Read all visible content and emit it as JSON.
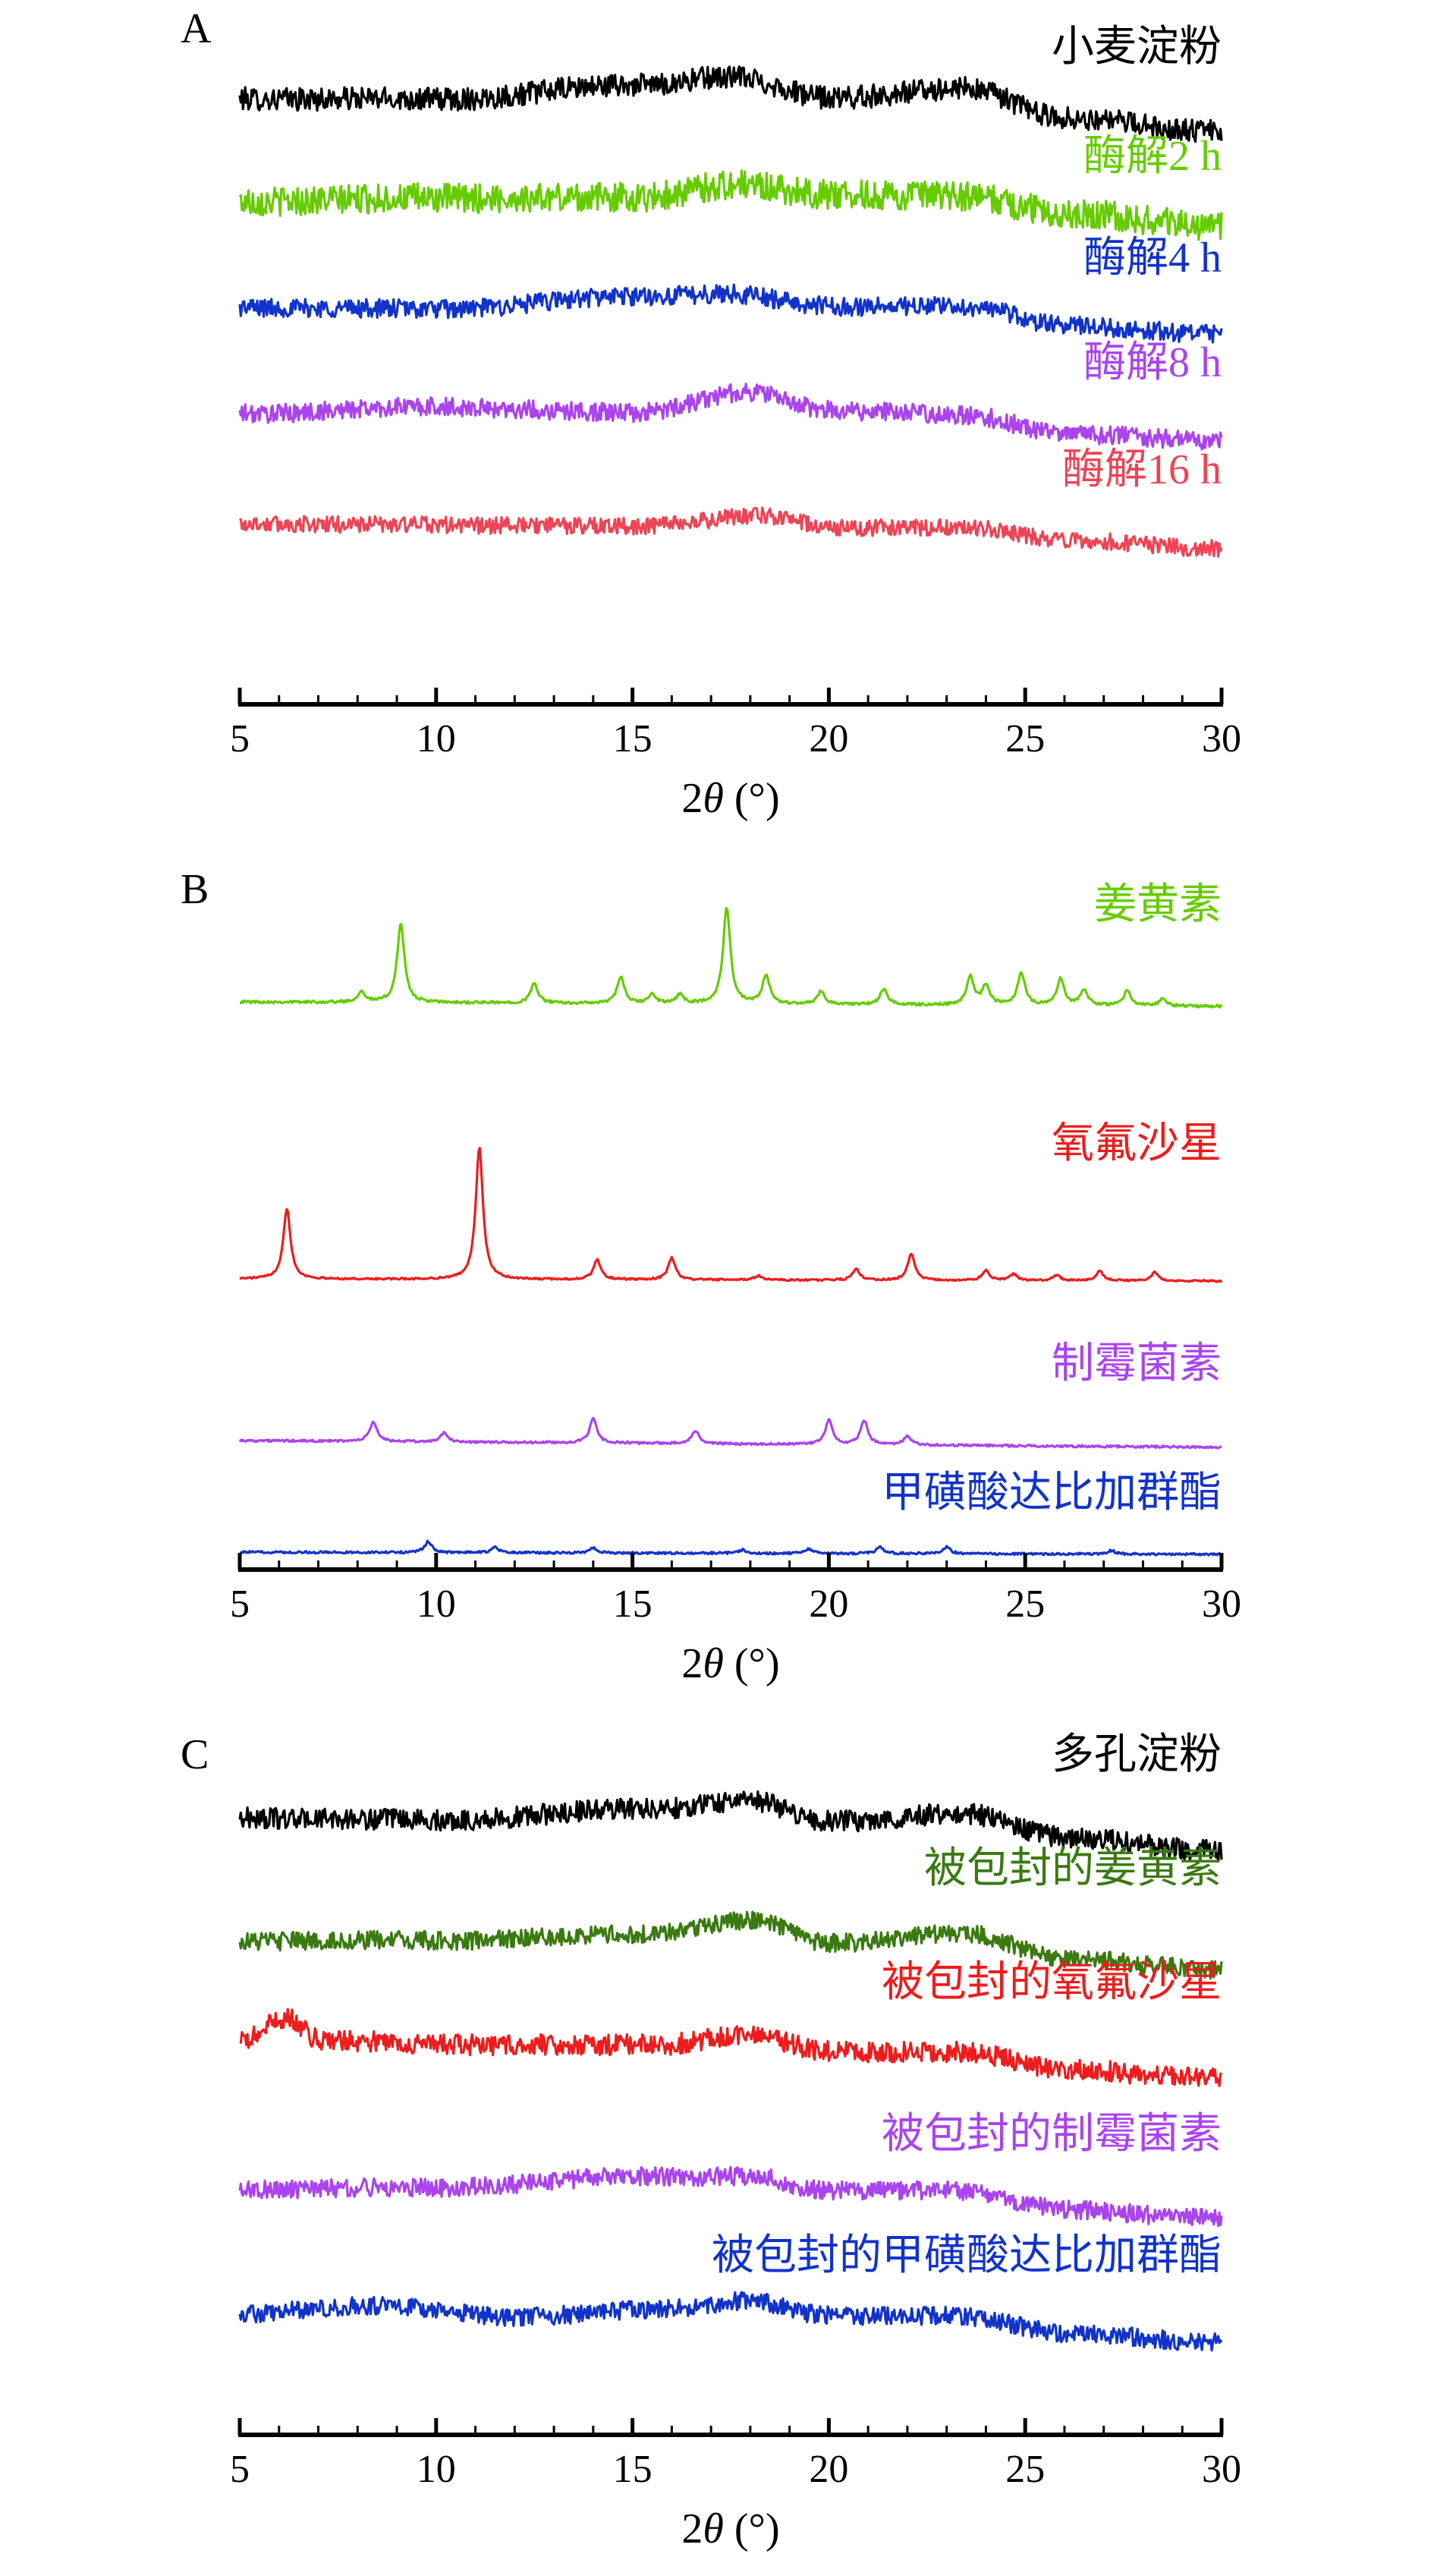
{
  "figure": {
    "xlabel_prefix": "2",
    "xlabel_symbol": "θ",
    "xlabel_unit": " (°)"
  },
  "chart_data": [
    {
      "type": "line",
      "panel": "A",
      "xlabel": "2θ (°)",
      "xlim": [
        5,
        30
      ],
      "xticks": [
        5,
        10,
        15,
        20,
        25,
        30
      ],
      "grid": false,
      "series": [
        {
          "name": "小麦淀粉",
          "color": "#000000",
          "noise": 0.55,
          "base": 0.0,
          "slope": -0.55,
          "x": [
            5,
            10,
            15.2,
            17.5,
            20,
            23.5,
            26,
            30
          ],
          "y": [
            0,
            0.1,
            0.55,
            0.8,
            0.35,
            0.65,
            0.0,
            -0.25
          ]
        },
        {
          "name": "酶解2 h",
          "color": "#66cc00",
          "noise": 0.7,
          "base": 0.0,
          "slope": -0.4,
          "x": [
            5,
            10,
            15,
            17.8,
            20,
            23.5,
            26,
            30
          ],
          "y": [
            0,
            0.15,
            0.25,
            0.6,
            0.4,
            0.4,
            0.05,
            -0.2
          ]
        },
        {
          "name": "酶解4 h",
          "color": "#1133cc",
          "noise": 0.45,
          "base": 0.0,
          "slope": -0.45,
          "x": [
            5,
            10,
            15.2,
            17.5,
            20,
            23.5,
            26,
            30
          ],
          "y": [
            0,
            0.05,
            0.45,
            0.55,
            0.3,
            0.35,
            -0.05,
            -0.2
          ]
        },
        {
          "name": "酶解8 h",
          "color": "#aa44ee",
          "noise": 0.45,
          "base": 0.0,
          "slope": -0.45,
          "x": [
            5,
            10,
            15,
            18,
            20,
            23.5,
            26,
            30
          ],
          "y": [
            0,
            0.25,
            0.2,
            0.75,
            0.35,
            0.3,
            -0.1,
            -0.2
          ]
        },
        {
          "name": "酶解16 h",
          "color": "#ee4455",
          "noise": 0.4,
          "base": 0.0,
          "slope": -0.4,
          "x": [
            5,
            10,
            15,
            18.5,
            20,
            23.5,
            26,
            30
          ],
          "y": [
            0,
            0.05,
            0.1,
            0.4,
            0.15,
            0.2,
            -0.05,
            -0.2
          ]
        }
      ]
    },
    {
      "type": "line",
      "panel": "B",
      "xlabel": "2θ (°)",
      "xlim": [
        5,
        30
      ],
      "xticks": [
        5,
        10,
        15,
        20,
        25,
        30
      ],
      "grid": false,
      "series": [
        {
          "name": "姜黄素",
          "color": "#66cc00",
          "noise": 0.06,
          "base": 0.0,
          "slope": -0.1,
          "peaks": [
            [
              8.1,
              0.25
            ],
            [
              9.1,
              1.8
            ],
            [
              12.5,
              0.45
            ],
            [
              14.7,
              0.6
            ],
            [
              15.5,
              0.2
            ],
            [
              16.2,
              0.2
            ],
            [
              17.4,
              2.2
            ],
            [
              18.4,
              0.65
            ],
            [
              19.8,
              0.3
            ],
            [
              21.4,
              0.35
            ],
            [
              23.6,
              0.65
            ],
            [
              24.0,
              0.45
            ],
            [
              24.9,
              0.75
            ],
            [
              25.9,
              0.6
            ],
            [
              26.5,
              0.35
            ],
            [
              27.6,
              0.35
            ],
            [
              28.5,
              0.15
            ]
          ]
        },
        {
          "name": "氧氟沙星",
          "color": "#ee1c1c",
          "noise": 0.04,
          "base": 0.0,
          "slope": -0.05,
          "peaks": [
            [
              6.2,
              1.6
            ],
            [
              11.1,
              3.0
            ],
            [
              14.1,
              0.45
            ],
            [
              16.0,
              0.5
            ],
            [
              18.2,
              0.1
            ],
            [
              20.7,
              0.25
            ],
            [
              22.1,
              0.6
            ],
            [
              24.0,
              0.22
            ],
            [
              24.7,
              0.15
            ],
            [
              25.8,
              0.12
            ],
            [
              26.9,
              0.22
            ],
            [
              28.3,
              0.2
            ]
          ]
        },
        {
          "name": "制霉菌素",
          "color": "#aa44ee",
          "noise": 0.05,
          "base": 0.0,
          "slope": -0.15,
          "peaks": [
            [
              8.4,
              0.45
            ],
            [
              10.2,
              0.2
            ],
            [
              14.0,
              0.55
            ],
            [
              16.6,
              0.3
            ],
            [
              20.0,
              0.55
            ],
            [
              20.9,
              0.55
            ],
            [
              22.0,
              0.2
            ]
          ]
        },
        {
          "name": "甲磺酸达比加群酯",
          "color": "#1133cc",
          "noise": 0.05,
          "base": 0.0,
          "slope": -0.05,
          "peaks": [
            [
              9.8,
              0.25
            ],
            [
              11.5,
              0.12
            ],
            [
              14.0,
              0.12
            ],
            [
              17.8,
              0.08
            ],
            [
              19.5,
              0.1
            ],
            [
              21.3,
              0.15
            ],
            [
              23.0,
              0.15
            ],
            [
              27.2,
              0.08
            ]
          ]
        }
      ]
    },
    {
      "type": "line",
      "panel": "C",
      "xlabel": "2θ (°)",
      "xlim": [
        5,
        30
      ],
      "xticks": [
        5,
        10,
        15,
        20,
        25,
        30
      ],
      "grid": false,
      "series": [
        {
          "name": "多孔淀粉",
          "color": "#000000",
          "noise": 0.5,
          "base": 0.0,
          "slope": -0.55,
          "x": [
            5,
            10,
            15.5,
            18,
            20,
            23.5,
            26,
            30
          ],
          "y": [
            0,
            0.05,
            0.45,
            0.7,
            0.25,
            0.5,
            0.0,
            -0.25
          ]
        },
        {
          "name": "被包封的姜黄素",
          "color": "#3a7a10",
          "noise": 0.45,
          "base": 0.0,
          "slope": -0.5,
          "x": [
            5,
            10,
            15.2,
            18,
            20,
            23.5,
            26,
            30
          ],
          "y": [
            0,
            0.1,
            0.35,
            0.75,
            0.25,
            0.55,
            0.0,
            -0.2
          ]
        },
        {
          "name": "被包封的氧氟沙星",
          "color": "#ee1c1c",
          "noise": 0.5,
          "base": 0.0,
          "slope": -0.55,
          "x": [
            5,
            6.2,
            7,
            10,
            15.5,
            18,
            20,
            23.5,
            26,
            30
          ],
          "y": [
            0,
            0.6,
            0.1,
            0.05,
            0.15,
            0.45,
            0.1,
            0.15,
            -0.2,
            -0.35
          ]
        },
        {
          "name": "被包封的制霉菌素",
          "color": "#aa44ee",
          "noise": 0.45,
          "base": 0.0,
          "slope": -0.45,
          "x": [
            5,
            10,
            15.3,
            18,
            20,
            23.5,
            26,
            30
          ],
          "y": [
            0,
            0.15,
            0.5,
            0.55,
            0.25,
            0.3,
            -0.1,
            -0.25
          ]
        },
        {
          "name": "被包封的甲磺酸达比加群酯",
          "color": "#1133cc",
          "noise": 0.45,
          "base": 0.0,
          "slope": -0.5,
          "x": [
            5,
            8.5,
            12,
            15.5,
            18,
            20,
            23.5,
            26,
            30
          ],
          "y": [
            0,
            0.25,
            0.05,
            0.3,
            0.55,
            0.25,
            0.3,
            -0.05,
            -0.2
          ]
        }
      ]
    }
  ]
}
